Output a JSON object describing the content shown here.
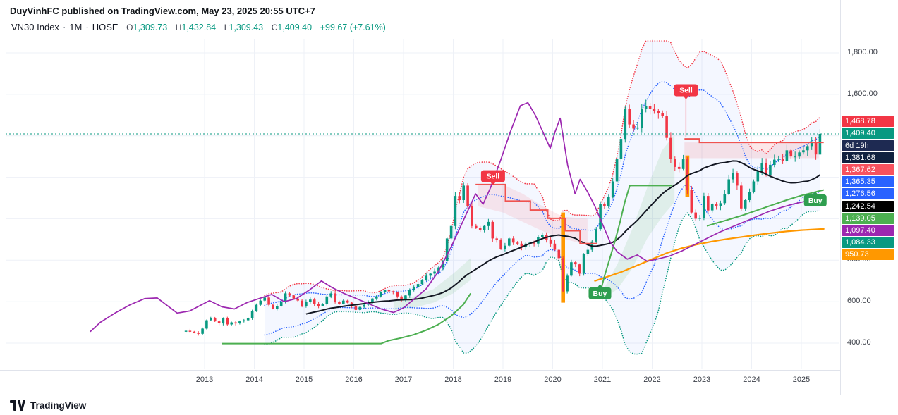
{
  "header": {
    "watermark": "DuyVinhFC published on TradingView.com, May 23, 2025 20:55 UTC+7"
  },
  "legend": {
    "symbol": "VN30 Index",
    "interval": "1M",
    "exchange": "HOSE",
    "sep": "·",
    "o_label": "O",
    "o_value": "1,309.73",
    "h_label": "H",
    "h_value": "1,432.84",
    "l_label": "L",
    "l_value": "1,309.43",
    "c_label": "C",
    "c_value": "1,409.40",
    "change": "+99.67 (+7.61%)",
    "up_color": "#089981"
  },
  "price_axis": {
    "labels": [
      {
        "text": "1,800.00",
        "value": 1800
      },
      {
        "text": "1,600.00",
        "value": 1600
      },
      {
        "text": "800.00",
        "value": 800
      },
      {
        "text": "600.00",
        "value": 600
      },
      {
        "text": "400.00",
        "value": 400
      }
    ],
    "tags": [
      {
        "text": "1,468.78",
        "value": 1468.78,
        "bg": "#f23645",
        "fg": "#ffffff"
      },
      {
        "text": "1,409.40",
        "value": 1409.4,
        "bg": "#089981",
        "fg": "#ffffff",
        "countdown": {
          "text": "6d 19h",
          "bg": "#1e2a52",
          "fg": "#ffffff"
        }
      },
      {
        "text": "1,381.68",
        "value": 1381.68,
        "bg": "#10213f",
        "fg": "#ffffff"
      },
      {
        "text": "1,367.62",
        "value": 1367.62,
        "bg": "#f7525f",
        "fg": "#ffffff"
      },
      {
        "text": "1,365.35",
        "value": 1365.35,
        "bg": "#2962ff",
        "fg": "#ffffff"
      },
      {
        "text": "1,276.56",
        "value": 1276.56,
        "bg": "#2962ff",
        "fg": "#ffffff"
      },
      {
        "text": "1,242.54",
        "value": 1242.54,
        "bg": "#000000",
        "fg": "#ffffff"
      },
      {
        "text": "1,139.05",
        "value": 1139.05,
        "bg": "#4caf50",
        "fg": "#ffffff"
      },
      {
        "text": "1,097.40",
        "value": 1097.4,
        "bg": "#9c27b0",
        "fg": "#ffffff"
      },
      {
        "text": "1,084.33",
        "value": 1084.33,
        "bg": "#089981",
        "fg": "#ffffff"
      },
      {
        "text": "950.73",
        "value": 950.73,
        "bg": "#ff9800",
        "fg": "#ffffff"
      }
    ]
  },
  "time_axis": {
    "years": [
      {
        "label": "2013",
        "value": 2013
      },
      {
        "label": "2014",
        "value": 2014
      },
      {
        "label": "2015",
        "value": 2015
      },
      {
        "label": "2016",
        "value": 2016
      },
      {
        "label": "2017",
        "value": 2017
      },
      {
        "label": "2018",
        "value": 2018
      },
      {
        "label": "2019",
        "value": 2019
      },
      {
        "label": "2020",
        "value": 2020
      },
      {
        "label": "2021",
        "value": 2021
      },
      {
        "label": "2022",
        "value": 2022
      },
      {
        "label": "2023",
        "value": 2023
      },
      {
        "label": "2024",
        "value": 2024
      },
      {
        "label": "2025",
        "value": 2025
      }
    ]
  },
  "footer": {
    "brand": "TradingView"
  },
  "chart_data": {
    "type": "candlestick",
    "title": "VN30 Index, 1M, HOSE",
    "interval": "1M",
    "ylim": [
      380,
      1860
    ],
    "time_range": [
      2009,
      2025.8
    ],
    "grid": true,
    "price_gridlines": [
      400,
      600,
      800,
      1000,
      1200,
      1400,
      1600,
      1800
    ],
    "years": [
      2013,
      2014,
      2015,
      2016,
      2017,
      2018,
      2019,
      2020,
      2021,
      2022,
      2023,
      2024,
      2025
    ],
    "current_price": 1409.4,
    "up_color": "#089981",
    "down_color": "#f23645",
    "candles": {
      "start_time": 2012.625,
      "first_open": 455,
      "last_ohlc": [
        1309.73,
        1432.84,
        1309.43,
        1409.4
      ],
      "closes_by_year": {
        "2012": [
          460,
          455,
          450,
          445,
          470
        ],
        "2013": [
          510,
          520,
          505,
          495,
          520,
          490,
          500,
          495,
          505,
          510,
          520,
          555
        ],
        "2014": [
          585,
          605,
          620,
          585,
          565,
          580,
          600,
          640,
          630,
          615,
          605,
          580
        ],
        "2015": [
          600,
          610,
          590,
          580,
          590,
          625,
          640,
          600,
          590,
          605,
          595,
          580
        ],
        "2016": [
          560,
          575,
          585,
          595,
          615,
          625,
          645,
          655,
          650,
          645,
          625,
          610
        ],
        "2017": [
          630,
          655,
          670,
          685,
          705,
          725,
          735,
          745,
          765,
          795,
          905,
          965
        ],
        "2018": [
          1110,
          1090,
          1160,
          1060,
          965,
          955,
          945,
          965,
          985,
          905,
          900,
          855
        ],
        "2019": [
          870,
          905,
          885,
          880,
          865,
          880,
          885,
          880,
          910,
          920,
          900,
          880
        ],
        "2020": [
          850,
          810,
          650,
          725,
          790,
          780,
          735,
          830,
          850,
          890,
          950,
          1070
        ],
        "2021": [
          1060,
          1105,
          1180,
          1290,
          1385,
          1530,
          1455,
          1435,
          1440,
          1530,
          1545,
          1530
        ],
        "2022": [
          1520,
          1510,
          1495,
          1390,
          1290,
          1250,
          1240,
          1290,
          1140,
          1030,
          1000,
          1005
        ],
        "2023": [
          1110,
          1040,
          1070,
          1060,
          1075,
          1120,
          1190,
          1220,
          1160,
          1050,
          1090,
          1130
        ],
        "2024": [
          1180,
          1230,
          1270,
          1210,
          1260,
          1285,
          1290,
          1280,
          1330,
          1300,
          1300,
          1320
        ],
        "2025": [
          1330,
          1350,
          1370,
          1309.73,
          1409.4
        ]
      }
    },
    "indicators": {
      "sma_black": {
        "period": 30,
        "color": "#131722",
        "last_value": 1242.54
      },
      "sma_orange": {
        "color": "#ff9800",
        "last_value": 950.73,
        "points": [
          [
            2020.85,
            700
          ],
          [
            2021.1,
            720
          ],
          [
            2021.4,
            745
          ],
          [
            2021.7,
            775
          ],
          [
            2022.0,
            805
          ],
          [
            2022.3,
            835
          ],
          [
            2022.6,
            858
          ],
          [
            2022.9,
            876
          ],
          [
            2023.2,
            890
          ],
          [
            2023.5,
            902
          ],
          [
            2023.8,
            912
          ],
          [
            2024.1,
            922
          ],
          [
            2024.4,
            931
          ],
          [
            2024.7,
            939
          ],
          [
            2025.0,
            945
          ],
          [
            2025.45,
            950.73
          ]
        ]
      },
      "purple_overlay": {
        "color": "#9c27b0",
        "last_value": 1097.4,
        "points": [
          [
            2010.7,
            455
          ],
          [
            2010.9,
            500
          ],
          [
            2011.2,
            545
          ],
          [
            2011.5,
            585
          ],
          [
            2011.8,
            615
          ],
          [
            2012.05,
            618
          ],
          [
            2012.2,
            590
          ],
          [
            2012.45,
            545
          ],
          [
            2012.7,
            555
          ],
          [
            2012.9,
            580
          ],
          [
            2013.1,
            605
          ],
          [
            2013.35,
            575
          ],
          [
            2013.6,
            565
          ],
          [
            2013.85,
            595
          ],
          [
            2014.1,
            615
          ],
          [
            2014.35,
            635
          ],
          [
            2014.6,
            600
          ],
          [
            2014.85,
            615
          ],
          [
            2015.1,
            655
          ],
          [
            2015.35,
            700
          ],
          [
            2015.55,
            670
          ],
          [
            2015.8,
            640
          ],
          [
            2016.05,
            615
          ],
          [
            2016.3,
            590
          ],
          [
            2016.55,
            565
          ],
          [
            2016.8,
            548
          ],
          [
            2017.0,
            570
          ],
          [
            2017.2,
            610
          ],
          [
            2017.45,
            660
          ],
          [
            2017.7,
            745
          ],
          [
            2017.95,
            860
          ],
          [
            2018.2,
            990
          ],
          [
            2018.45,
            1120
          ],
          [
            2018.6,
            1070
          ],
          [
            2018.75,
            1150
          ],
          [
            2018.95,
            1280
          ],
          [
            2019.15,
            1420
          ],
          [
            2019.35,
            1545
          ],
          [
            2019.5,
            1560
          ],
          [
            2019.65,
            1500
          ],
          [
            2019.8,
            1420
          ],
          [
            2019.95,
            1340
          ],
          [
            2020.05,
            1420
          ],
          [
            2020.15,
            1485
          ],
          [
            2020.3,
            1260
          ],
          [
            2020.45,
            1120
          ],
          [
            2020.55,
            1190
          ],
          [
            2020.7,
            1130
          ],
          [
            2020.85,
            1060
          ],
          [
            2021.0,
            975
          ],
          [
            2021.15,
            890
          ],
          [
            2021.3,
            840
          ],
          [
            2021.5,
            805
          ],
          [
            2021.7,
            825
          ],
          [
            2021.9,
            795
          ],
          [
            2022.1,
            805
          ],
          [
            2022.35,
            820
          ],
          [
            2022.6,
            845
          ],
          [
            2022.85,
            875
          ],
          [
            2023.1,
            905
          ],
          [
            2023.35,
            935
          ],
          [
            2023.6,
            960
          ],
          [
            2023.85,
            985
          ],
          [
            2024.1,
            1010
          ],
          [
            2024.35,
            1035
          ],
          [
            2024.6,
            1055
          ],
          [
            2024.85,
            1072
          ],
          [
            2025.1,
            1085
          ],
          [
            2025.45,
            1097.4
          ]
        ]
      },
      "bollinger": {
        "period": 20,
        "inner_mult": 1.5,
        "outer_mult": 2.5,
        "upper_color": "#f23645",
        "inner_color": "#2962ff",
        "lower_color": "#089981",
        "fill_color": "rgba(41,98,255,0.05)"
      },
      "trend_green": {
        "color": "#4caf50",
        "last_value": 1139.05,
        "segments": [
          [
            [
              2013.35,
              398
            ],
            [
              2016.55,
              398
            ],
            [
              2016.7,
              412
            ],
            [
              2016.95,
              425
            ],
            [
              2017.2,
              440
            ],
            [
              2017.45,
              462
            ],
            [
              2017.7,
              490
            ],
            [
              2017.95,
              530
            ],
            [
              2018.2,
              585
            ],
            [
              2018.35,
              640
            ]
          ],
          [
            [
              2020.95,
              640
            ],
            [
              2021.05,
              730
            ],
            [
              2021.15,
              810
            ],
            [
              2021.25,
              890
            ],
            [
              2021.35,
              980
            ],
            [
              2021.45,
              1080
            ],
            [
              2021.55,
              1160
            ],
            [
              2022.4,
              1160
            ]
          ],
          [
            [
              2023.1,
              965
            ],
            [
              2023.45,
              990
            ],
            [
              2023.8,
              1015
            ],
            [
              2024.1,
              1040
            ],
            [
              2024.4,
              1065
            ],
            [
              2024.7,
              1090
            ],
            [
              2025.0,
              1112
            ],
            [
              2025.45,
              1139.05
            ]
          ]
        ]
      },
      "trend_red": {
        "color": "#ef5350",
        "last_value": 1367.62,
        "segments": [
          [
            [
              2018.45,
              1165
            ],
            [
              2019.05,
              1165
            ],
            [
              2019.05,
              1085
            ],
            [
              2019.55,
              1085
            ],
            [
              2019.55,
              1042
            ],
            [
              2019.9,
              1042
            ],
            [
              2019.9,
              1002
            ],
            [
              2020.25,
              1002
            ],
            [
              2020.25,
              942
            ],
            [
              2020.55,
              942
            ],
            [
              2020.55,
              880
            ],
            [
              2020.9,
              880
            ]
          ],
          [
            [
              2022.65,
              1385
            ],
            [
              2022.95,
              1385
            ],
            [
              2022.95,
              1368
            ],
            [
              2025.45,
              1368
            ]
          ]
        ]
      },
      "clouds": [
        {
          "fill": "rgba(76,175,80,0.12)",
          "top": [
            [
              2016.8,
              610
            ],
            [
              2017.2,
              625
            ],
            [
              2017.6,
              660
            ],
            [
              2018.0,
              735
            ],
            [
              2018.35,
              810
            ]
          ],
          "bottom": [
            [
              2018.35,
              705
            ],
            [
              2018.0,
              640
            ],
            [
              2017.6,
              595
            ],
            [
              2017.2,
              570
            ],
            [
              2016.8,
              558
            ]
          ]
        },
        {
          "fill": "rgba(242,54,69,0.10)",
          "top": [
            [
              2018.5,
              1165
            ],
            [
              2019.0,
              1165
            ],
            [
              2019.4,
              1120
            ],
            [
              2019.8,
              1060
            ],
            [
              2020.2,
              1010
            ],
            [
              2020.7,
              1000
            ]
          ],
          "bottom": [
            [
              2020.7,
              872
            ],
            [
              2020.2,
              905
            ],
            [
              2019.8,
              940
            ],
            [
              2019.4,
              985
            ],
            [
              2019.0,
              1030
            ],
            [
              2018.5,
              1060
            ]
          ]
        },
        {
          "fill": "rgba(76,175,80,0.12)",
          "top": [
            [
              2021.0,
              650
            ],
            [
              2021.3,
              780
            ],
            [
              2021.6,
              950
            ],
            [
              2021.9,
              1150
            ],
            [
              2022.2,
              1330
            ],
            [
              2022.45,
              1405
            ]
          ],
          "bottom": [
            [
              2022.45,
              1080
            ],
            [
              2022.2,
              1010
            ],
            [
              2021.9,
              905
            ],
            [
              2021.6,
              760
            ],
            [
              2021.3,
              660
            ],
            [
              2021.0,
              608
            ]
          ]
        },
        {
          "fill": "rgba(242,54,69,0.12)",
          "top": [
            [
              2022.65,
              1368
            ],
            [
              2025.35,
              1368
            ]
          ],
          "bottom": [
            [
              2025.35,
              1292
            ],
            [
              2022.65,
              1292
            ]
          ]
        }
      ]
    },
    "signals": [
      {
        "type": "sell",
        "label": "Sell",
        "time": 2018.8,
        "price": 1205,
        "pointer_to": 1170
      },
      {
        "type": "buy",
        "label": "Buy",
        "time": 2020.95,
        "price": 640
      },
      {
        "type": "sell",
        "label": "Sell",
        "time": 2022.68,
        "price": 1620,
        "pointer_to": 1392
      },
      {
        "type": "buy",
        "label": "Buy",
        "time": 2025.28,
        "price": 1088
      }
    ],
    "highlight_bars": [
      {
        "time": 2020.208,
        "top": 1030,
        "bottom": 595
      },
      {
        "time": 2022.708,
        "top": 1305,
        "bottom": 1105
      }
    ]
  }
}
